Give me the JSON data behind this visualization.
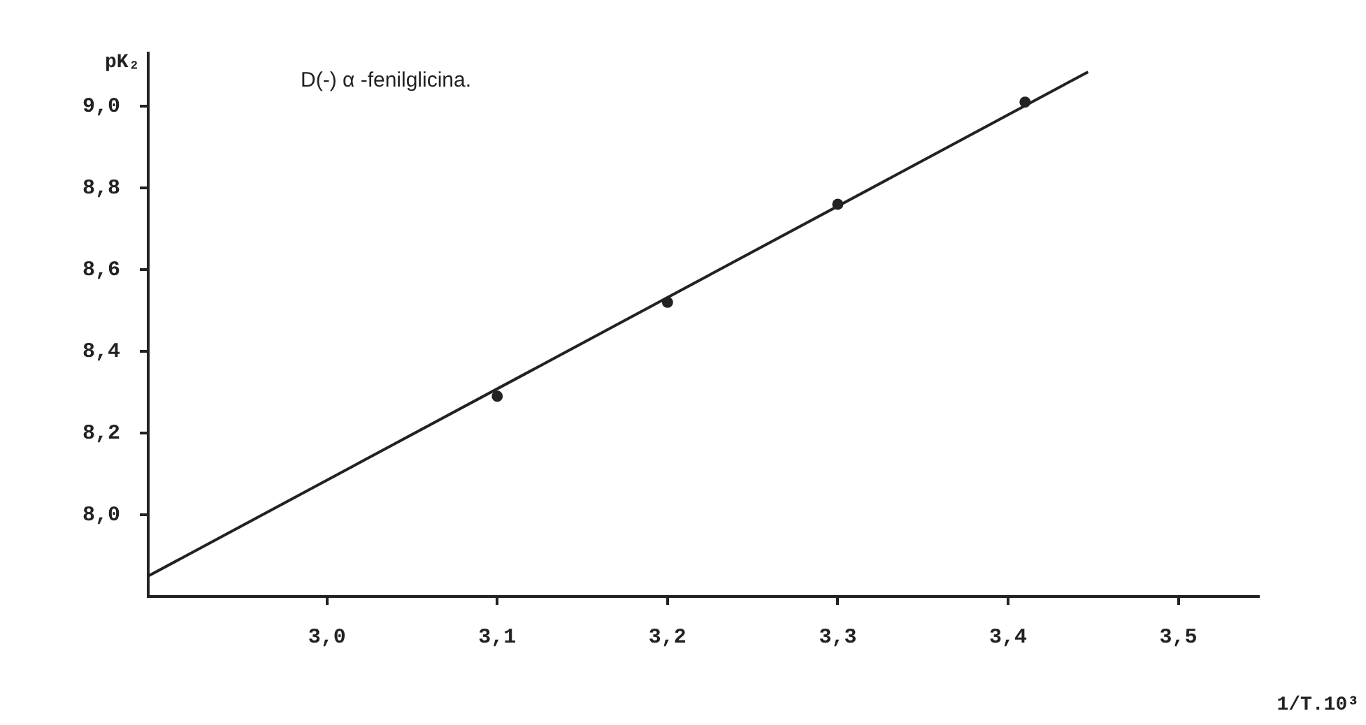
{
  "chart_data": {
    "type": "scatter",
    "annotations": [
      "D(-) α -fenilglicina."
    ],
    "xlabel": "1/T.10³",
    "ylabel": "pK₂",
    "series": [
      {
        "color": "#222222",
        "x": [
          3.1,
          3.2,
          3.3,
          3.41
        ],
        "values": [
          8.29,
          8.52,
          8.76,
          9.01
        ]
      },
      {
        "type": "line",
        "color": "#222222",
        "x": [
          2.895,
          3.447
        ],
        "values": [
          7.85,
          9.084
        ],
        "marker": "none"
      }
    ],
    "xlim": [
      2.895,
      3.547
    ],
    "ylim": [
      7.8,
      9.13
    ],
    "xticks": [
      {
        "value": 3.0,
        "label": "3,0"
      },
      {
        "value": 3.1,
        "label": "3,1"
      },
      {
        "value": 3.2,
        "label": "3,2"
      },
      {
        "value": 3.3,
        "label": "3,3"
      },
      {
        "value": 3.4,
        "label": "3,4"
      },
      {
        "value": 3.5,
        "label": "3,5"
      }
    ],
    "yticks": [
      {
        "value": 8.0,
        "label": "8,0"
      },
      {
        "value": 8.2,
        "label": "8,2"
      },
      {
        "value": 8.4,
        "label": "8,4"
      },
      {
        "value": 8.6,
        "label": "8,6"
      },
      {
        "value": 8.8,
        "label": "8,8"
      },
      {
        "value": 9.0,
        "label": "9,0"
      }
    ],
    "grid": false,
    "legend": false,
    "marker": "circle"
  }
}
